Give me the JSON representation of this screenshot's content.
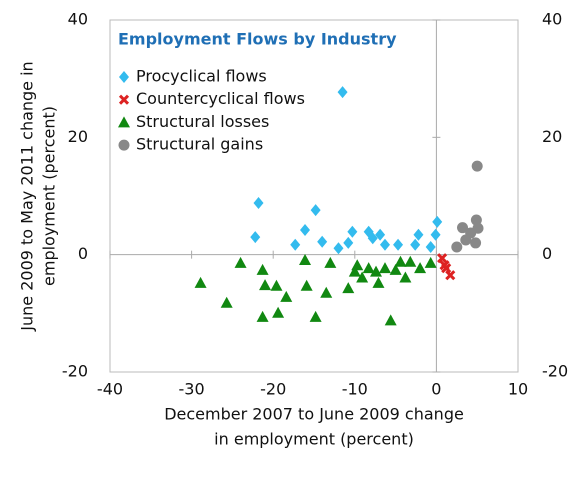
{
  "chart_data": {
    "type": "scatter",
    "title": "Employment Flows by Industry",
    "xlabel": [
      "December 2007 to June 2009 change",
      "in employment (percent)"
    ],
    "ylabel": [
      "June 2009 to May 2011 change in",
      "employment (percent)"
    ],
    "xlim": [
      -40,
      10
    ],
    "xticks": [
      -40,
      -30,
      -20,
      -10,
      0,
      10
    ],
    "ylim": [
      -20,
      40
    ],
    "yticks": [
      -20,
      0,
      20,
      40
    ],
    "y2lim": [
      -20,
      40
    ],
    "y2ticks": [
      -20,
      0,
      20,
      40
    ],
    "grid": false,
    "series": [
      {
        "name": "Procyclical flows",
        "color": "#33bbee",
        "marker": "diamond",
        "x": [
          -11.5,
          -21.8,
          -14.8,
          -22.2,
          -16.1,
          -17.3,
          -14.0,
          -10.3,
          -10.8,
          -8.3,
          -7.8,
          -6.9,
          -6.3,
          -4.7,
          -2.2,
          0.1,
          -0.1,
          -0.7,
          -12.0,
          -2.6
        ],
        "values": [
          27.7,
          8.8,
          7.6,
          3.0,
          4.2,
          1.7,
          2.2,
          3.9,
          2.0,
          3.9,
          2.8,
          3.4,
          1.7,
          1.7,
          3.4,
          5.6,
          3.4,
          1.3,
          1.1,
          1.7
        ]
      },
      {
        "name": "Countercyclical flows",
        "color": "#dd2222",
        "marker": "x",
        "x": [
          0.7,
          1.2,
          1.7,
          1.0
        ],
        "values": [
          -0.6,
          -2.3,
          -3.5,
          -1.8
        ]
      },
      {
        "name": "Structural losses",
        "color": "#118811",
        "marker": "triangle",
        "x": [
          -28.9,
          -25.7,
          -24.0,
          -21.3,
          -21.3,
          -21.0,
          -19.6,
          -19.4,
          -18.4,
          -16.1,
          -15.9,
          -14.8,
          -13.5,
          -13.0,
          -10.8,
          -10.0,
          -9.7,
          -9.1,
          -8.3,
          -7.4,
          -5.6,
          -7.1,
          -5.0,
          -3.8,
          -3.2,
          -2.0,
          -0.7,
          -4.4,
          -6.3
        ],
        "values": [
          -4.8,
          -8.2,
          -1.4,
          -10.6,
          -2.6,
          -5.2,
          -5.3,
          -9.9,
          -7.2,
          -0.9,
          -5.3,
          -10.6,
          -6.5,
          -1.4,
          -5.7,
          -2.9,
          -1.8,
          -3.9,
          -2.3,
          -2.9,
          -11.2,
          -4.8,
          -2.6,
          -3.9,
          -1.2,
          -2.3,
          -1.4,
          -1.2,
          -2.3
        ]
      },
      {
        "name": "Structural gains",
        "color": "#888888",
        "marker": "circle",
        "x": [
          5.0,
          4.9,
          3.2,
          3.6,
          2.5,
          4.8,
          4.2,
          5.1
        ],
        "values": [
          15.1,
          5.9,
          4.6,
          2.5,
          1.3,
          2.0,
          3.7,
          4.5
        ]
      }
    ]
  }
}
